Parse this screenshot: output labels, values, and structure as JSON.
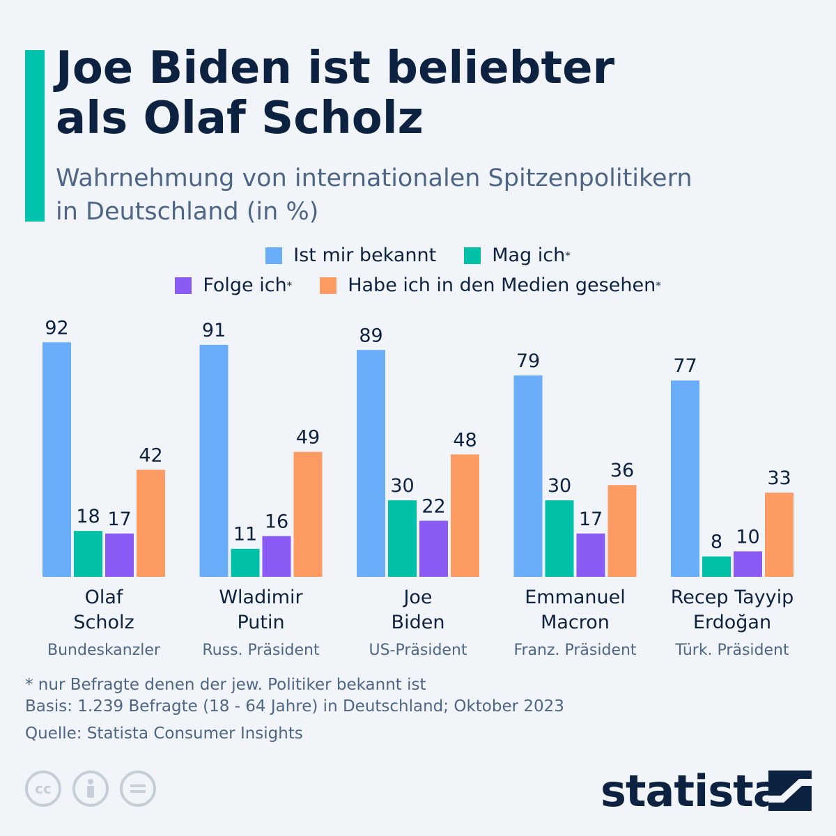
{
  "title": {
    "line1": "Joe Biden ist beliebter",
    "line2": "als Olaf Scholz"
  },
  "subtitle": {
    "line1": "Wahrnehmung von internationalen Spitzenpolitikern",
    "line2": "in Deutschland (in %)"
  },
  "colors": {
    "accent": "#00c2ad",
    "dark": "#0d2240",
    "muted": "#4e6686",
    "bekannt": "#6aaefa",
    "mag": "#00c1a8",
    "folge": "#8b5cf5",
    "medien": "#fd9b63"
  },
  "chart_data": {
    "type": "bar",
    "categories": [
      {
        "name_lines": [
          "Olaf",
          "Scholz"
        ],
        "role": "Bundeskanzler"
      },
      {
        "name_lines": [
          "Wladimir",
          "Putin"
        ],
        "role": "Russ. Präsident"
      },
      {
        "name_lines": [
          "Joe",
          "Biden"
        ],
        "role": "US-Präsident"
      },
      {
        "name_lines": [
          "Emmanuel",
          "Macron"
        ],
        "role": "Franz. Präsident"
      },
      {
        "name_lines": [
          "Recep Tayyip",
          "Erdoğan"
        ],
        "role": "Türk. Präsident"
      }
    ],
    "series": [
      {
        "name": "Ist mir bekannt",
        "asterisk": "",
        "color": "#6aaefa",
        "values": [
          92,
          91,
          89,
          79,
          77
        ]
      },
      {
        "name": "Mag ich",
        "asterisk": "*",
        "color": "#00c1a8",
        "values": [
          18,
          11,
          30,
          30,
          8
        ]
      },
      {
        "name": "Folge ich",
        "asterisk": "*",
        "color": "#8b5cf5",
        "values": [
          17,
          16,
          22,
          17,
          10
        ]
      },
      {
        "name": "Habe ich in den Medien gesehen",
        "asterisk": "*",
        "color": "#fd9b63",
        "values": [
          42,
          49,
          48,
          36,
          33
        ]
      }
    ],
    "ylim": [
      0,
      100
    ],
    "grid": false,
    "legend": "top-center"
  },
  "footnotes": {
    "note": "* nur Befragte denen der jew. Politiker bekannt ist",
    "basis": "Basis: 1.239 Befragte (18 - 64 Jahre) in Deutschland; Oktober 2023",
    "source": "Quelle: Statista Consumer Insights"
  },
  "brand": "statista",
  "license_icons": [
    "cc-icon",
    "by-icon",
    "nd-icon"
  ]
}
